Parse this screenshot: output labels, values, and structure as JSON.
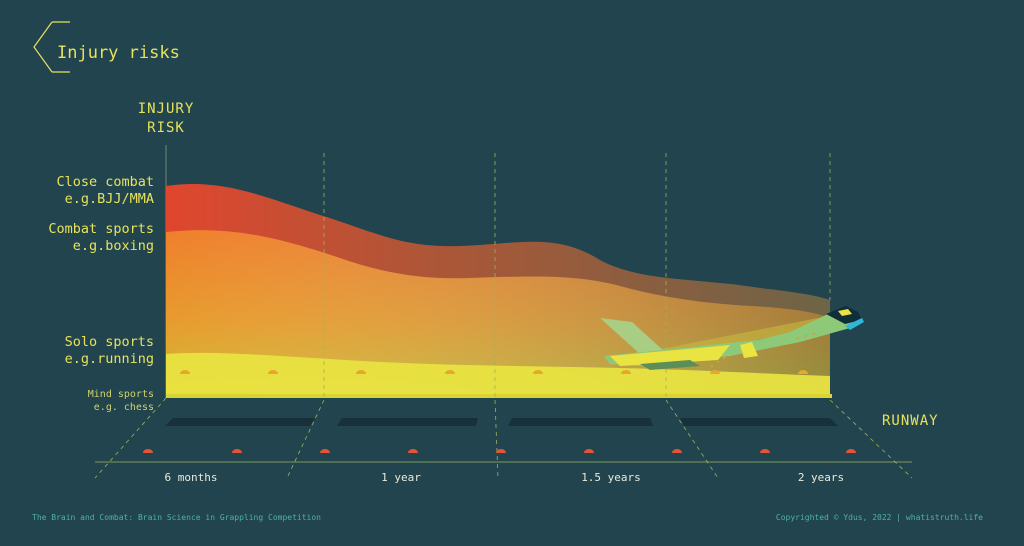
{
  "title": "Injury risks",
  "y_axis_title": [
    "INJURY",
    "RISK"
  ],
  "x_axis_title": "RUNWAY",
  "categories": [
    {
      "name": "Close combat",
      "example": "e.g.BJJ/MMA"
    },
    {
      "name": "Combat sports",
      "example": "e.g.boxing"
    },
    {
      "name": "Solo sports",
      "example": "e.g.running"
    },
    {
      "name": "Mind sports",
      "example": "e.g. chess"
    }
  ],
  "time_labels": [
    "6 months",
    "1 year",
    "1.5 years",
    "2 years"
  ],
  "footer_left": "The Brain and Combat: Brain Science in Grappling Competition",
  "footer_right": "Copyrighted © Ydus, 2022 | whatistruth.life",
  "colors": {
    "background": "#22444f",
    "text": "#e6e35a",
    "close_combat": "#e0462e",
    "combat_sports": "#ef8a2c",
    "solo_sports": "#e9e441",
    "mind_sports": "#d9d436",
    "runway_lights": "#e2553a",
    "plane": "#8ec97a"
  }
}
